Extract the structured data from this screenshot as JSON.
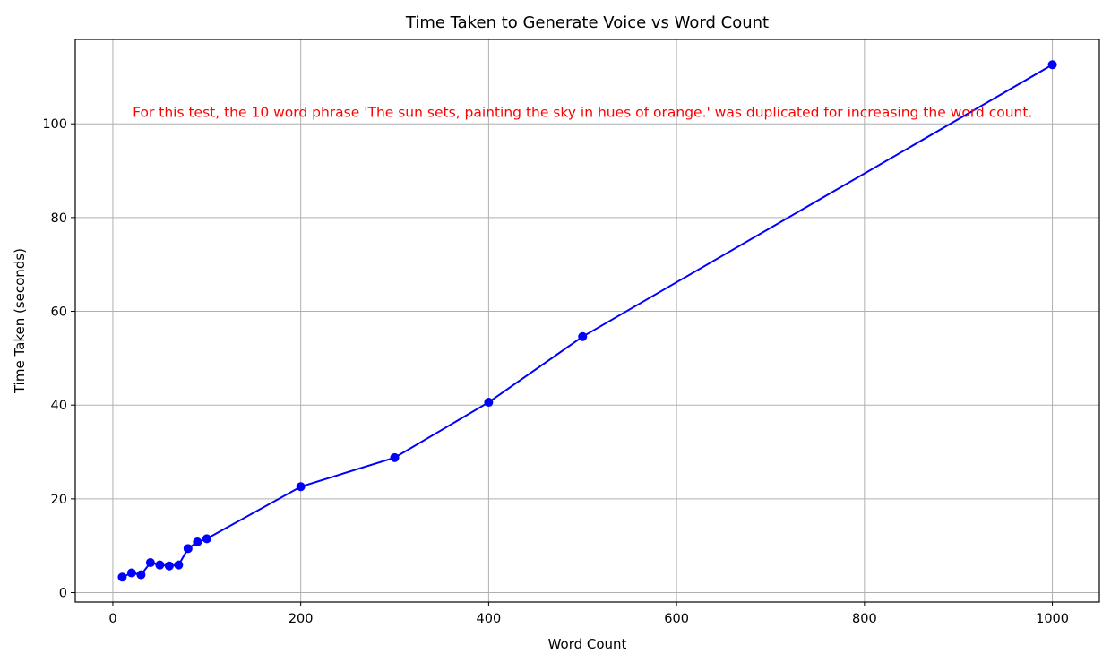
{
  "chart_data": {
    "type": "line",
    "title": "Time Taken to Generate Voice vs Word Count",
    "xlabel": "Word Count",
    "ylabel": "Time Taken (seconds)",
    "xlim": [
      -40,
      1050
    ],
    "ylim": [
      -2,
      118
    ],
    "xticks": [
      0,
      200,
      400,
      600,
      800,
      1000
    ],
    "yticks": [
      0,
      20,
      40,
      60,
      80,
      100
    ],
    "grid": true,
    "series": [
      {
        "color": "#0000ff",
        "marker": "circle",
        "x": [
          10,
          20,
          30,
          40,
          50,
          60,
          70,
          80,
          90,
          100,
          200,
          300,
          400,
          500,
          1000
        ],
        "y": [
          3.3,
          4.2,
          3.8,
          6.4,
          5.9,
          5.7,
          5.9,
          9.4,
          10.8,
          11.5,
          22.6,
          28.8,
          40.6,
          54.6,
          112.6
        ]
      }
    ],
    "annotations": [
      {
        "text": "For this test, the 10 word phrase 'The sun sets, painting the sky in hues of orange.' was duplicated for increasing the word count.",
        "x": 500,
        "y": 101.5,
        "color": "#ff0000"
      }
    ]
  }
}
